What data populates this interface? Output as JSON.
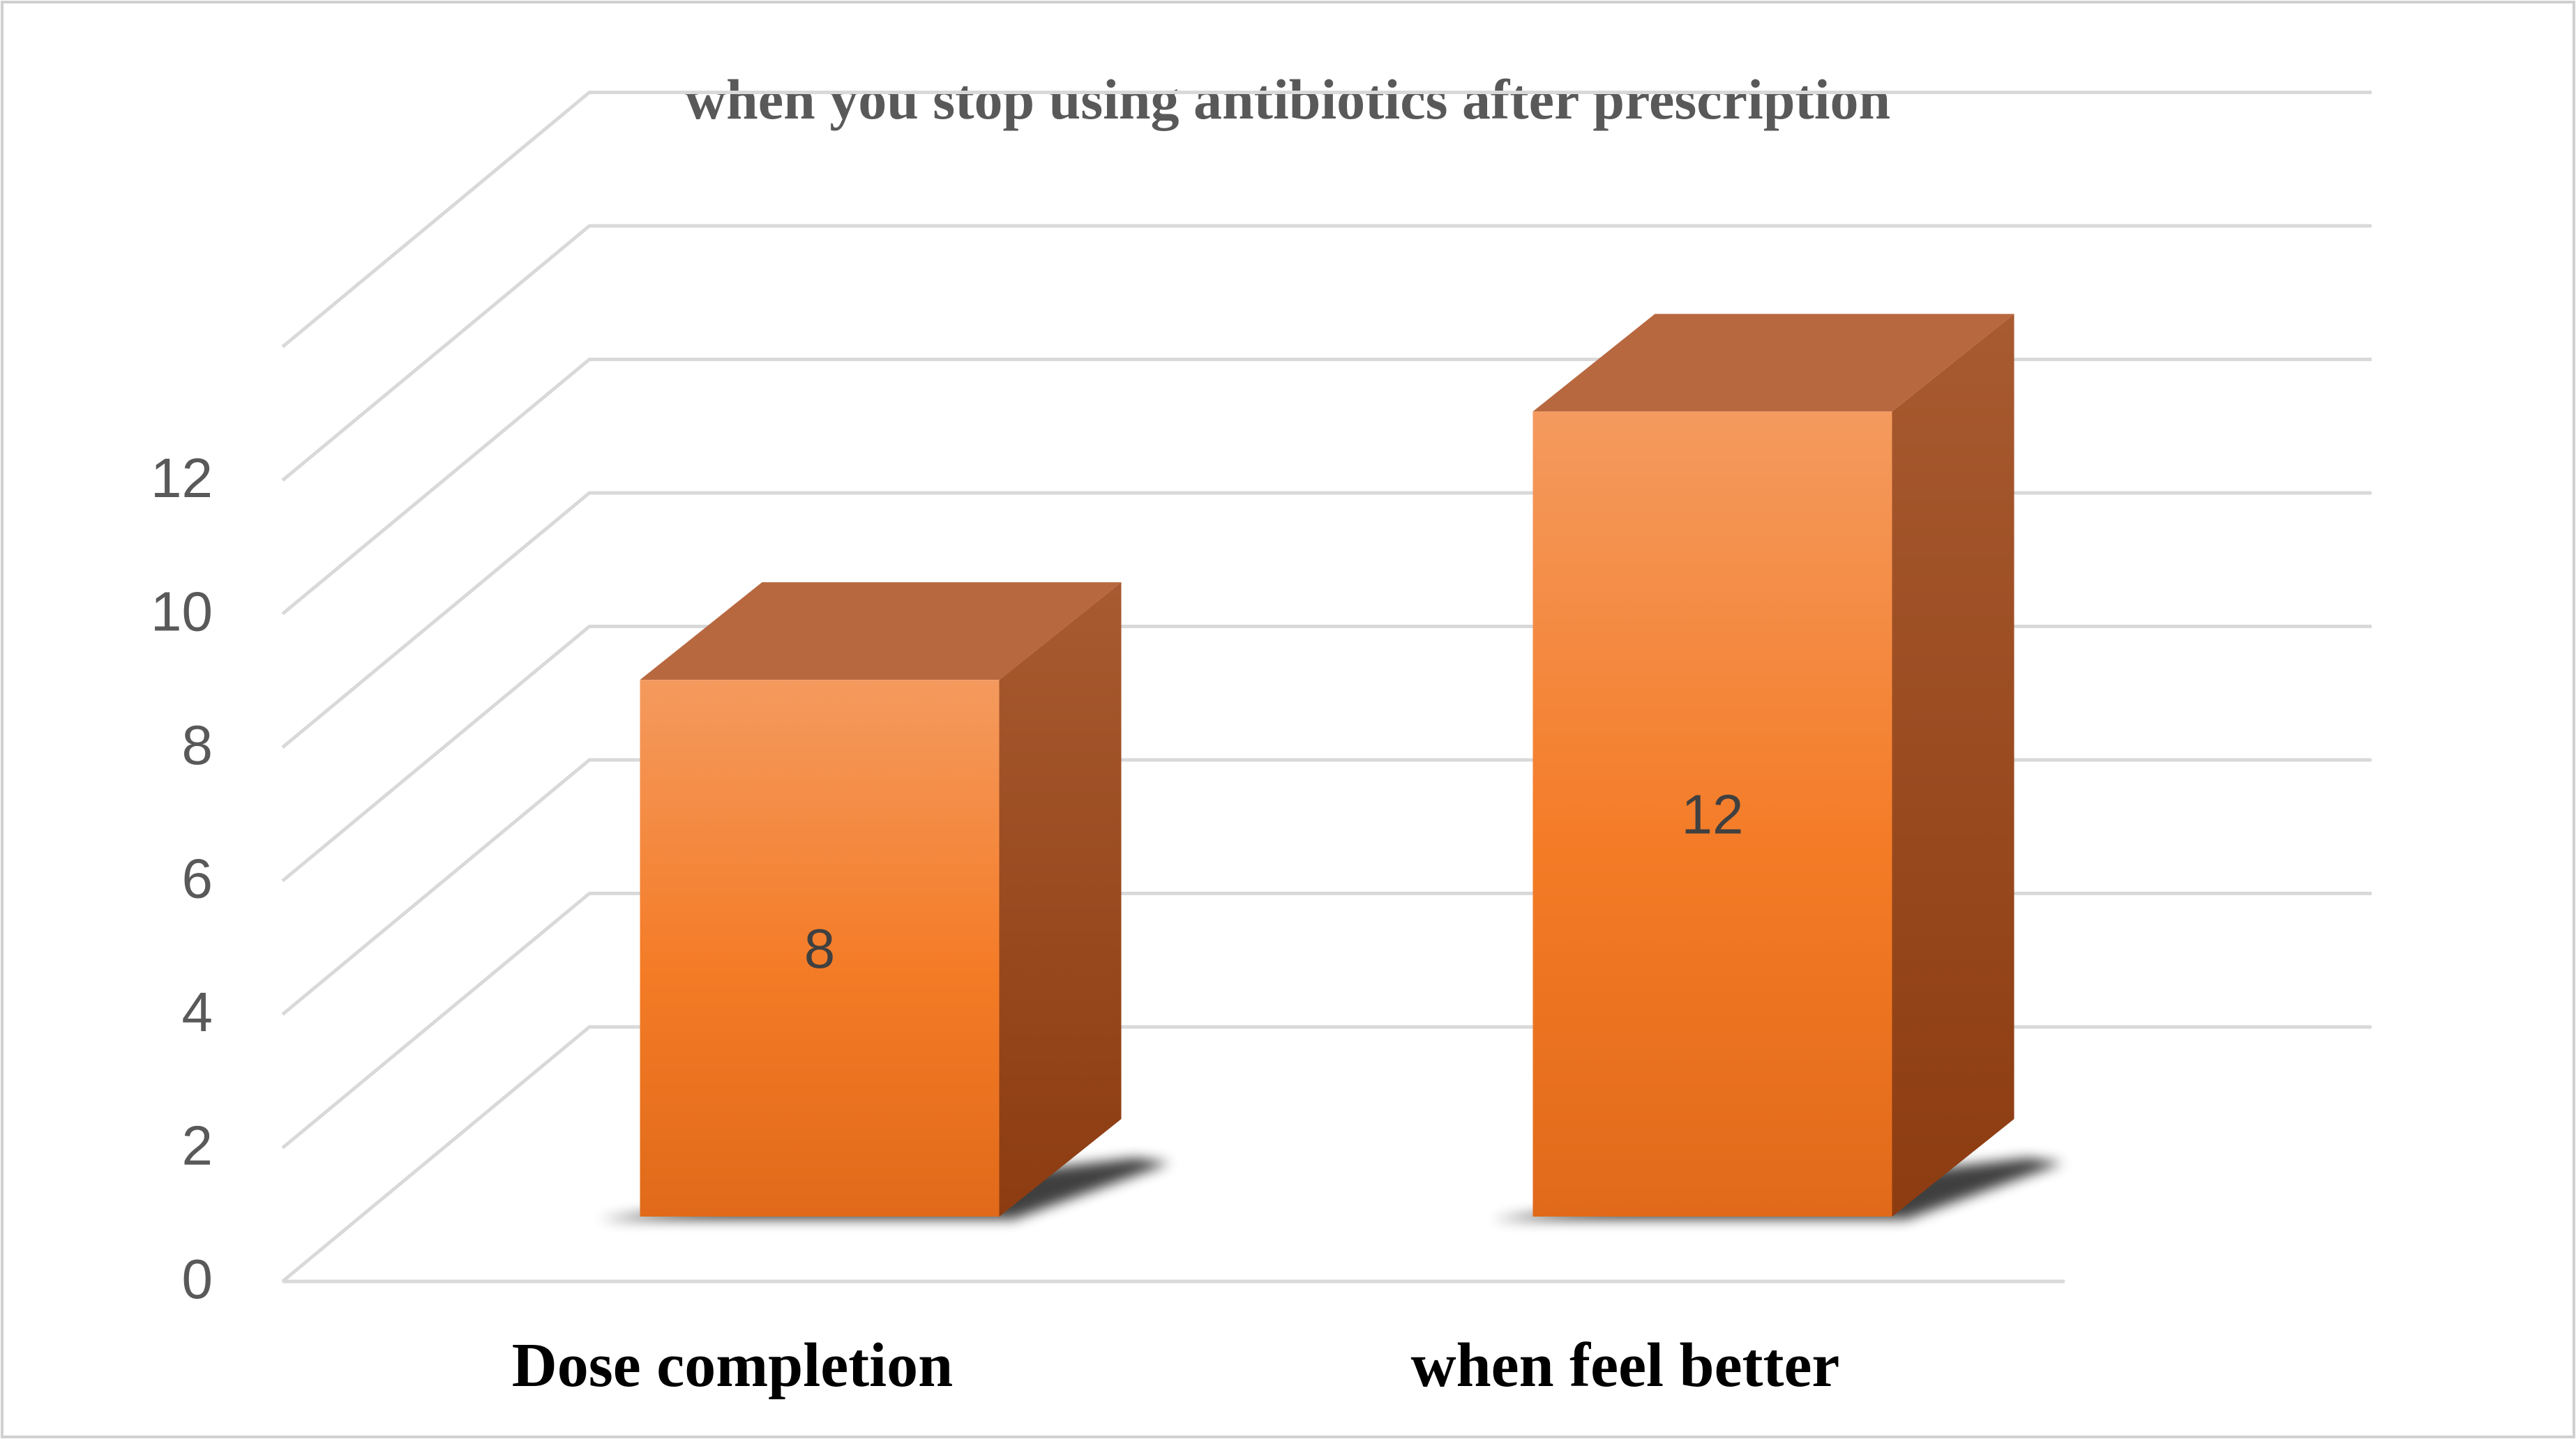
{
  "chart_data": {
    "type": "bar",
    "style": "3d-column",
    "title": "when you stop using antibiotics after prescription",
    "xlabel": "",
    "ylabel": "",
    "categories": [
      "Dose completion",
      "when feel better"
    ],
    "values": [
      8,
      12
    ],
    "data_labels": [
      "8",
      "12"
    ],
    "ylim": [
      0,
      12
    ],
    "y_ticks": [
      "0",
      "2",
      "4",
      "6",
      "8",
      "10",
      "12"
    ],
    "grid": true,
    "legend": "none",
    "colors": {
      "bar_front_top": "#f49a5e",
      "bar_front_mid": "#f47b26",
      "bar_front_bottom": "#e06a1a",
      "bar_side_top": "#a85a30",
      "bar_side_bottom": "#8c3c10",
      "bar_top": "#b8683f",
      "gridline": "#d9d9d9",
      "frame": "#d0d0d0",
      "text": "#595959"
    }
  }
}
